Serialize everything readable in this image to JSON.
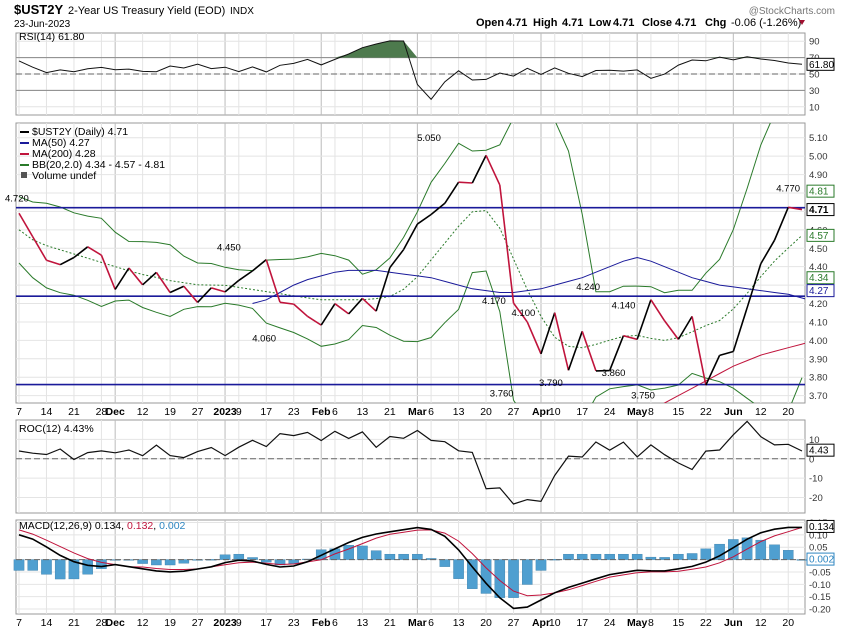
{
  "header": {
    "symbol": "$UST2Y",
    "name": "2-Year US Treasury Yield (EOD)",
    "exchange": "INDX",
    "date": "23-Jun-2023",
    "watermark": "@StockCharts.com",
    "ohlc": {
      "open_label": "Open",
      "open": "4.71",
      "high_label": "High",
      "high": "4.71",
      "low_label": "Low",
      "low": "4.71",
      "close_label": "Close",
      "close": "4.71",
      "chg_label": "Chg",
      "chg": "-0.06 (-1.26%)"
    }
  },
  "chart_data": [
    {
      "type": "line",
      "name": "rsi",
      "legend": "RSI(14) 61.80",
      "ylim": [
        0,
        100
      ],
      "yticks": [
        10,
        30,
        50,
        70,
        90
      ],
      "levels": [
        30,
        50,
        70
      ],
      "last_label": "61.80",
      "values": [
        66,
        60,
        54,
        50,
        56,
        52,
        58,
        54,
        60,
        55,
        58,
        50,
        56,
        52,
        60,
        57,
        58,
        64,
        56,
        60,
        52,
        54,
        60,
        52,
        62,
        58,
        66,
        68,
        60,
        66,
        70,
        76,
        82,
        86,
        88,
        92,
        90,
        40,
        20,
        18,
        50,
        54,
        40,
        50,
        38,
        54,
        46,
        60,
        52,
        48,
        58,
        50,
        54,
        40,
        58,
        55,
        50,
        60,
        52,
        44,
        48,
        58,
        64,
        68,
        66,
        70,
        72,
        64,
        72,
        68,
        70,
        62,
        64,
        62
      ]
    },
    {
      "type": "line",
      "name": "price",
      "title": "$UST2Y (Daily) 4.71",
      "ylim": [
        3.66,
        5.18
      ],
      "yticks": [
        3.7,
        3.8,
        3.9,
        4.0,
        4.1,
        4.2,
        4.3,
        4.4,
        4.5,
        4.6,
        4.7,
        4.8,
        4.9,
        5.0,
        5.1
      ],
      "legend": [
        {
          "label": "$UST2Y (Daily) 4.71",
          "color": "#000000"
        },
        {
          "label": "MA(50) 4.27",
          "color": "#1a1a9a"
        },
        {
          "label": "MA(200) 4.28",
          "color": "#c0143c"
        },
        {
          "label": "BB(20,2.0) 4.34 - 4.57 - 4.81",
          "color": "#2a7a2a"
        },
        {
          "label": "Volume undef",
          "color": "#555555"
        }
      ],
      "hlines": [
        4.72,
        4.24,
        3.76
      ],
      "hline_color": "#1a1a9a",
      "close": [
        4.69,
        4.63,
        4.39,
        4.47,
        4.4,
        4.44,
        4.52,
        4.49,
        4.45,
        4.27,
        4.4,
        4.37,
        4.24,
        4.4,
        4.25,
        4.36,
        4.18,
        4.22,
        4.29,
        4.24,
        4.35,
        4.3,
        4.4,
        4.45,
        4.23,
        4.16,
        4.22,
        4.12,
        4.06,
        4.19,
        4.21,
        4.12,
        4.23,
        4.09,
        4.32,
        4.45,
        4.5,
        4.62,
        4.7,
        4.66,
        4.78,
        4.86,
        4.82,
        4.95,
        5.05,
        4.8,
        4.22,
        4.05,
        4.18,
        3.8,
        4.17,
        3.76,
        4.1,
        4.0,
        3.79,
        3.82,
        4.05,
        3.98,
        4.02,
        4.24,
        4.15,
        3.92,
        4.1,
        4.14,
        3.75,
        3.95,
        3.85,
        4.0,
        4.2,
        4.4,
        4.5,
        4.6,
        4.77,
        4.71
      ],
      "ma50": [
        4.2,
        4.22,
        4.26,
        4.3,
        4.33,
        4.35,
        4.37,
        4.38,
        4.38,
        4.38,
        4.37,
        4.36,
        4.35,
        4.34,
        4.32,
        4.3,
        4.28,
        4.27,
        4.26,
        4.26,
        4.27,
        4.28,
        4.3,
        4.32,
        4.34,
        4.37,
        4.4,
        4.43,
        4.45,
        4.43,
        4.4,
        4.37,
        4.34,
        4.32,
        4.3,
        4.29,
        4.28,
        4.27,
        4.26,
        4.25,
        4.23,
        4.21,
        4.18,
        4.15,
        4.12,
        4.08,
        4.03,
        4.01,
        4.01,
        4.03,
        4.06,
        4.1,
        4.15,
        4.19,
        4.23,
        4.27
      ],
      "ma50_start": 17,
      "ma200": [
        3.62,
        3.66,
        3.7,
        3.74,
        3.78,
        3.82,
        3.86,
        3.89,
        3.92,
        3.94,
        3.96,
        3.98,
        4.0,
        4.02,
        4.03,
        4.05,
        4.07,
        4.09,
        4.1,
        4.12,
        4.14,
        4.16,
        4.18,
        4.2,
        4.22,
        4.24,
        4.26,
        4.28
      ],
      "ma200_start": 46,
      "bb_mid_step": 1,
      "bb_mid": [
        4.6,
        4.55,
        4.52,
        4.5,
        4.48,
        4.46,
        4.44,
        4.42,
        4.4,
        4.38,
        4.36,
        4.35,
        4.33,
        4.32,
        4.31,
        4.3,
        4.3,
        4.3,
        4.29,
        4.28,
        4.27,
        4.26,
        4.25,
        4.24,
        4.23,
        4.22,
        4.22,
        4.22,
        4.22,
        4.22,
        4.23,
        4.24,
        4.28,
        4.34,
        4.42,
        4.5,
        4.58,
        4.66,
        4.72,
        4.7,
        4.6,
        4.45,
        4.3,
        4.17,
        4.05,
        3.98,
        3.96,
        3.96,
        3.98,
        4.0,
        4.02,
        4.03,
        4.02,
        4.0,
        4.0,
        4.02,
        4.05,
        4.08,
        4.1,
        4.15,
        4.22,
        4.3,
        4.38,
        4.45,
        4.51,
        4.57
      ]
    },
    {
      "type": "line",
      "name": "roc",
      "legend": "ROC(12) 4.43%",
      "ylim": [
        -28,
        20
      ],
      "yticks": [
        -20,
        -10,
        0,
        10
      ],
      "last_label": "4.43",
      "values": [
        4,
        2,
        5,
        0,
        6,
        -1,
        4,
        2,
        5,
        3,
        6,
        0,
        3,
        8,
        2,
        -2,
        5,
        3,
        6,
        1,
        4,
        8,
        10,
        6,
        12,
        15,
        10,
        14,
        8,
        16,
        12,
        10,
        14,
        5,
        8,
        14,
        10,
        15,
        12,
        6,
        10,
        4,
        8,
        -10,
        -20,
        -14,
        -24,
        -18,
        -26,
        -20,
        -8,
        0,
        6,
        -4,
        12,
        4,
        10,
        6,
        -2,
        8,
        4,
        -6,
        2,
        -8,
        4,
        2,
        10,
        14,
        20,
        12,
        8,
        6,
        8,
        4
      ]
    },
    {
      "type": "line",
      "name": "macd",
      "legend_label": "MACD(12,26,9) ",
      "legend_values": [
        "0.134",
        ", ",
        "0.132",
        ", ",
        "0.002"
      ],
      "legend_colors": [
        "#000000",
        "#000000",
        "#c0143c",
        "#000000",
        "#2e86c1"
      ],
      "ylim": [
        -0.22,
        0.16
      ],
      "yticks": [
        -0.2,
        -0.15,
        -0.1,
        -0.05,
        0.0,
        0.05,
        0.1,
        0.15
      ],
      "last_label": "0.134",
      "last_label_2": "0.002",
      "macd": [
        0.1,
        0.08,
        0.04,
        0.0,
        -0.02,
        -0.03,
        -0.02,
        -0.03,
        -0.04,
        -0.05,
        -0.05,
        -0.04,
        -0.03,
        -0.01,
        0.0,
        -0.01,
        -0.03,
        -0.03,
        -0.01,
        0.02,
        0.05,
        0.08,
        0.1,
        0.11,
        0.12,
        0.13,
        0.12,
        0.08,
        0.0,
        -0.08,
        -0.15,
        -0.2,
        -0.19,
        -0.15,
        -0.12,
        -0.1,
        -0.08,
        -0.06,
        -0.05,
        -0.04,
        -0.05,
        -0.04,
        -0.03,
        -0.01,
        0.02,
        0.06,
        0.1,
        0.12,
        0.13,
        0.13
      ],
      "signal": [
        0.12,
        0.1,
        0.07,
        0.04,
        0.01,
        -0.01,
        -0.02,
        -0.03,
        -0.03,
        -0.04,
        -0.04,
        -0.04,
        -0.03,
        -0.02,
        -0.01,
        -0.01,
        -0.02,
        -0.02,
        -0.01,
        0.0,
        0.03,
        0.05,
        0.08,
        0.1,
        0.11,
        0.12,
        0.12,
        0.1,
        0.05,
        -0.02,
        -0.08,
        -0.13,
        -0.15,
        -0.14,
        -0.13,
        -0.11,
        -0.09,
        -0.07,
        -0.06,
        -0.05,
        -0.05,
        -0.05,
        -0.04,
        -0.03,
        -0.01,
        0.02,
        0.06,
        0.09,
        0.11,
        0.13
      ]
    }
  ],
  "x_axis": {
    "labels": [
      {
        "i": 0,
        "t": "7"
      },
      {
        "i": 2,
        "t": "14"
      },
      {
        "i": 4,
        "t": "21"
      },
      {
        "i": 6,
        "t": "28"
      },
      {
        "i": 7,
        "t": "Dec",
        "bold": true
      },
      {
        "i": 9,
        "t": "12"
      },
      {
        "i": 11,
        "t": "19"
      },
      {
        "i": 13,
        "t": "27"
      },
      {
        "i": 15,
        "t": "2023",
        "bold": true
      },
      {
        "i": 16,
        "t": "9"
      },
      {
        "i": 18,
        "t": "17"
      },
      {
        "i": 20,
        "t": "23"
      },
      {
        "i": 22,
        "t": "Feb",
        "bold": true
      },
      {
        "i": 23,
        "t": "6"
      },
      {
        "i": 25,
        "t": "13"
      },
      {
        "i": 27,
        "t": "21"
      },
      {
        "i": 29,
        "t": "Mar",
        "bold": true
      },
      {
        "i": 30,
        "t": "6"
      },
      {
        "i": 32,
        "t": "13"
      },
      {
        "i": 34,
        "t": "20"
      },
      {
        "i": 36,
        "t": "27"
      },
      {
        "i": 38,
        "t": "Apr",
        "bold": true
      },
      {
        "i": 39,
        "t": "10"
      },
      {
        "i": 41,
        "t": "17"
      },
      {
        "i": 43,
        "t": "24"
      },
      {
        "i": 45,
        "t": "May",
        "bold": true
      },
      {
        "i": 46,
        "t": "8"
      },
      {
        "i": 48,
        "t": "15"
      },
      {
        "i": 50,
        "t": "22"
      },
      {
        "i": 52,
        "t": "Jun",
        "bold": true
      },
      {
        "i": 54,
        "t": "12"
      },
      {
        "i": 56,
        "t": "20"
      }
    ],
    "count": 58
  },
  "annotations": [
    {
      "t": "4.720",
      "i": 0,
      "v": 4.72,
      "dx": -14,
      "dy": -6
    },
    {
      "t": "4.450",
      "i": 15,
      "v": 4.45,
      "dx": -8,
      "dy": -7
    },
    {
      "t": "4.060",
      "i": 18,
      "v": 4.06,
      "dx": -14,
      "dy": 12
    },
    {
      "t": "5.050",
      "i": 30,
      "v": 5.05,
      "dx": -14,
      "dy": -6
    },
    {
      "t": "4.170",
      "i": 34,
      "v": 4.17,
      "dx": -4,
      "dy": -5
    },
    {
      "t": "3.760",
      "i": 35,
      "v": 3.76,
      "dx": -10,
      "dy": 12
    },
    {
      "t": "4.100",
      "i": 36,
      "v": 4.1,
      "dx": -2,
      "dy": -6
    },
    {
      "t": "3.790",
      "i": 38,
      "v": 3.79,
      "dx": -2,
      "dy": 7
    },
    {
      "t": "4.240",
      "i": 41,
      "v": 4.24,
      "dx": -6,
      "dy": -6
    },
    {
      "t": "3.860",
      "i": 43,
      "v": 3.86,
      "dx": -8,
      "dy": 10
    },
    {
      "t": "4.140",
      "i": 43,
      "v": 4.14,
      "dx": 2,
      "dy": -6
    },
    {
      "t": "3.750",
      "i": 45,
      "v": 3.75,
      "dx": -6,
      "dy": 12
    },
    {
      "t": "4.770",
      "i": 56,
      "v": 4.77,
      "dx": -12,
      "dy": -7
    }
  ],
  "price_right_labels": [
    {
      "t": "4.81",
      "v": 4.81,
      "color": "#2a7a2a",
      "bold": false
    },
    {
      "t": "4.71",
      "v": 4.71,
      "color": "#000000",
      "bold": true
    },
    {
      "t": "4.57",
      "v": 4.57,
      "color": "#2a7a2a",
      "bold": false
    },
    {
      "t": "4.34",
      "v": 4.34,
      "color": "#2a7a2a",
      "bold": false
    },
    {
      "t": "4.27",
      "v": 4.27,
      "color": "#1a1a9a",
      "bold": false
    }
  ]
}
